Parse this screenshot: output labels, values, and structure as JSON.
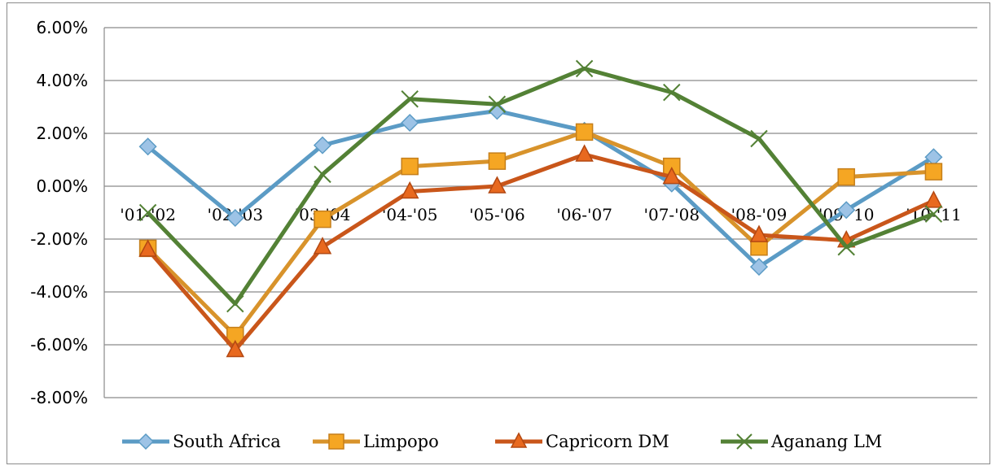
{
  "chart_data": {
    "type": "line",
    "title": "",
    "xlabel": "",
    "ylabel": "",
    "categories": [
      "'01-'02",
      "'02-'03",
      "'03-'04",
      "'04-'05",
      "'05-'06",
      "'06-'07",
      "'07-'08",
      "'08-'09",
      "'09-'10",
      "'10-'11"
    ],
    "y_ticks": [
      "6.00%",
      "4.00%",
      "2.00%",
      "0.00%",
      "-2.00%",
      "-4.00%",
      "-6.00%",
      "-8.00%"
    ],
    "ylim": [
      -8,
      6
    ],
    "grid": true,
    "legend_position": "bottom",
    "series": [
      {
        "name": "South Africa",
        "color": "#5b9bc5",
        "marker": "diamond",
        "values": [
          1.5,
          -1.2,
          1.55,
          2.4,
          2.85,
          2.1,
          0.1,
          -3.05,
          -0.9,
          1.1
        ]
      },
      {
        "name": "Limpopo",
        "color": "#d8932b",
        "marker": "square",
        "values": [
          -2.35,
          -5.65,
          -1.25,
          0.75,
          0.95,
          2.05,
          0.75,
          -2.3,
          0.35,
          0.55
        ]
      },
      {
        "name": "Capricorn DM",
        "color": "#c9561a",
        "marker": "triangle",
        "values": [
          -2.4,
          -6.2,
          -2.3,
          -0.2,
          0.0,
          1.2,
          0.35,
          -1.85,
          -2.05,
          -0.55
        ]
      },
      {
        "name": "Aganang LM",
        "color": "#538135",
        "marker": "x",
        "values": [
          -1.0,
          -4.45,
          0.45,
          3.3,
          3.1,
          4.45,
          3.55,
          1.8,
          -2.3,
          -1.05
        ]
      }
    ]
  }
}
